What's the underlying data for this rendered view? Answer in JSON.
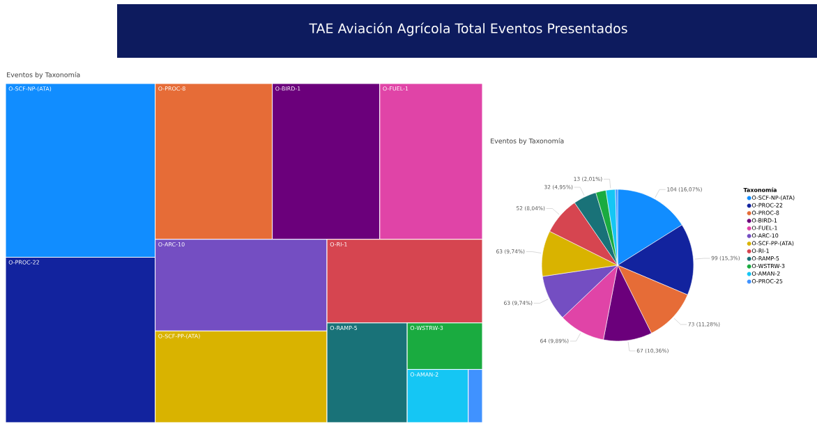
{
  "chart_data": [
    {
      "type": "other",
      "title": "TAE Aviación Agrícola Total Eventos Presentados",
      "subtitle": "Eventos by Taxonomía",
      "categories": [
        "O-SCF-NP-(ATA)",
        "O-PROC-22",
        "O-PROC-8",
        "O-BIRD-1",
        "O-FUEL-1",
        "O-ARC-10",
        "O-SCF-PP-(ATA)",
        "O-RI-1",
        "O-RAMP-5",
        "O-WSTRW-3",
        "O-AMAN-2",
        null
      ],
      "colors": [
        "#118dff",
        "#12239e",
        "#e66c37",
        "#6b007b",
        "#e044a7",
        "#744ec2",
        "#d9b300",
        "#d64550",
        "#197278",
        "#1aab40",
        "#15c6f4",
        "#4092ff"
      ]
    },
    {
      "type": "pie",
      "title": "Eventos by Taxonomía",
      "legend_title": "Taxonomía",
      "legend": "right",
      "categories": [
        "O-SCF-NP-(ATA)",
        "O-PROC-22",
        "O-PROC-8",
        "O-BIRD-1",
        "O-FUEL-1",
        "O-ARC-10",
        "O-SCF-PP-(ATA)",
        "O-RI-1",
        "O-RAMP-5",
        "O-WSTRW-3",
        "O-AMAN-2",
        "O-PROC-25"
      ],
      "values": [
        104,
        99,
        73,
        67,
        64,
        63,
        63,
        52,
        32,
        14,
        13,
        3
      ],
      "value_labels": [
        "104 (16,07%)",
        "99 (15,3%)",
        "73 (11,28%)",
        "67 (10,36%)",
        "64 (9,89%)",
        "63 (9,74%)",
        "63 (9,74%)",
        "52 (8,04%)",
        "32 (4,95%)",
        null,
        "13 (2,01%)",
        null
      ],
      "colors": [
        "#118dff",
        "#12239e",
        "#e66c37",
        "#6b007b",
        "#e044a7",
        "#744ec2",
        "#d9b300",
        "#d64550",
        "#197278",
        "#1aab40",
        "#15c6f4",
        "#4092ff"
      ]
    }
  ]
}
